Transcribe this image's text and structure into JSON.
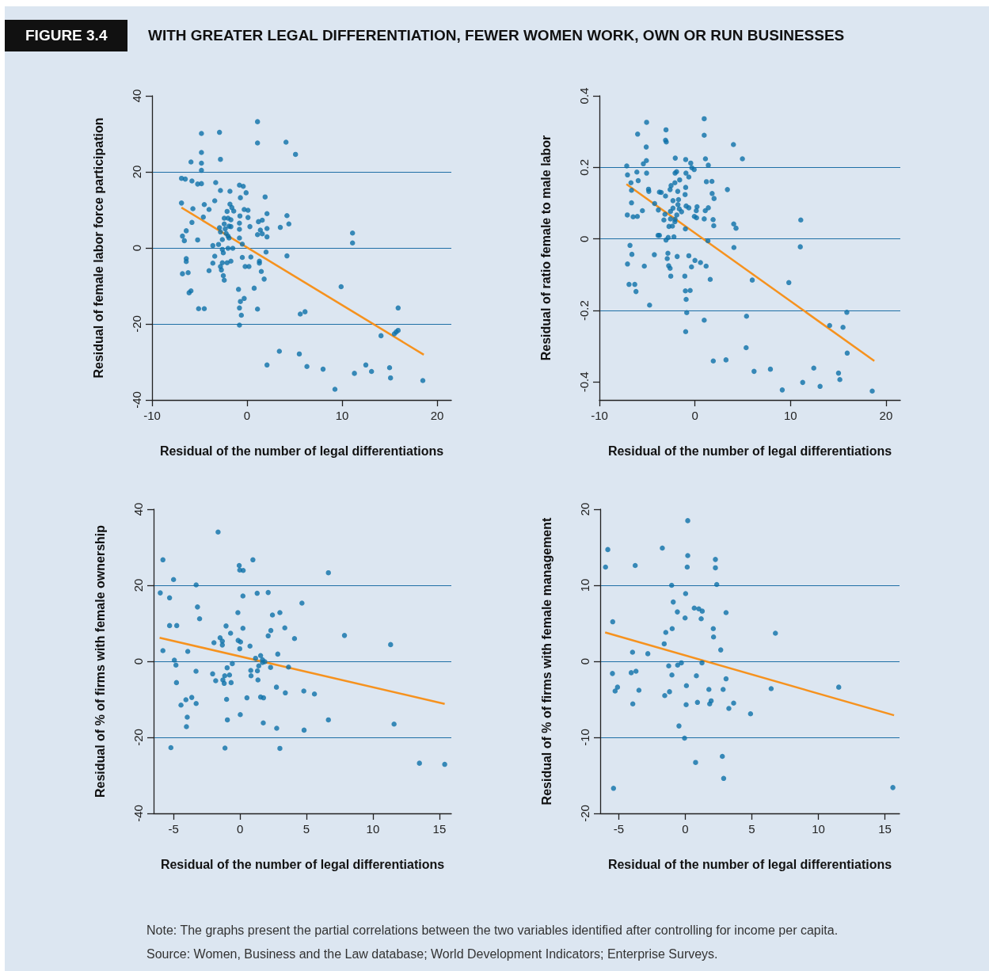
{
  "chart_data": [
    {
      "type": "scatter",
      "subtitle": "FIGURE 3.4",
      "title": "WITH GREATER LEGAL DIFFERENTIATION, FEWER WOMEN WORK, OWN OR RUN BUSINESSES",
      "xlabel": "Residual of the number of legal differentiations",
      "ylabel": "Residual of female labor force participation",
      "xlim": [
        -10,
        21.5
      ],
      "ylim": [
        -40,
        40
      ],
      "xticks": [
        -10,
        0,
        10,
        20
      ],
      "yticks": [
        -40,
        -20,
        0,
        20,
        40
      ],
      "grid": "y",
      "marker": "circle",
      "series": [
        {
          "color": "#0c70a9",
          "x": [
            1.1,
            -4.8,
            -2.9,
            1.1,
            4.1,
            5.1,
            -4.8,
            -5.9,
            -4.8,
            -2.8,
            -4.8,
            -6.9,
            -6.5,
            -5.8,
            -5.2,
            -4.8,
            -3.3,
            -0.8,
            -0.4,
            -2.8,
            -1.8,
            -0.1,
            -0.7,
            1.9,
            -3.4,
            -6.9,
            -4.5,
            -1.8,
            -4.0,
            -5.7,
            -1.6,
            -1.4,
            -2.1,
            -0.3,
            0.1,
            2.1,
            4.2,
            -0.75,
            -4.6,
            0.1,
            -2.4,
            -2.0,
            -1.7,
            -5.8,
            1.6,
            1.2,
            4.4,
            -2.4,
            -1.9,
            -1.7,
            -0.8,
            0.3,
            3.5,
            -2.9,
            -2.3,
            -0.8,
            2.1,
            1.4,
            -6.4,
            -2.8,
            -2.2,
            1.1,
            1.6,
            2.1,
            -6.8,
            -2.0,
            -1.9,
            -0.8,
            -6.6,
            -5.2,
            -2.6,
            -3.0,
            -3.6,
            -0.5,
            -2.0,
            -1.5,
            -2.6,
            -2.5,
            2.0,
            -3.4,
            -0.5,
            0.4,
            4.2,
            -6.4,
            -6.4,
            -2.6,
            -2.1,
            -1.7,
            1.3,
            1.3,
            -3.6,
            -2.8,
            -2.7,
            -0.2,
            0.2,
            -4.0,
            1.5,
            -6.8,
            -6.2,
            -2.5,
            1.8,
            -2.4,
            -0.9,
            0.75,
            9.9,
            -6.1,
            -5.9,
            -0.3,
            -0.7,
            -0.8,
            -0.6,
            -0.8,
            -5.1,
            -4.5,
            1.1,
            5.6,
            6.1,
            11.1,
            11.1,
            15.9,
            14.1,
            15.9,
            15.7,
            15.5,
            3.4,
            2.1,
            5.5,
            6.3,
            8.0,
            9.25,
            11.3,
            12.5,
            13.1,
            15.0,
            15.1,
            18.5
          ],
          "values": [
            33.2,
            30.1,
            30.4,
            27.6,
            27.8,
            24.6,
            25.1,
            22.6,
            22.3,
            23.3,
            20.4,
            18.3,
            18.1,
            17.6,
            16.8,
            16.9,
            17.2,
            16.5,
            16.2,
            15.1,
            14.9,
            14.5,
            13.2,
            13.4,
            12.4,
            11.8,
            11.4,
            11.5,
            10.1,
            10.3,
            10.6,
            9.7,
            9.6,
            10.1,
            9.9,
            9.0,
            8.5,
            8.4,
            8.1,
            8.0,
            7.8,
            7.8,
            7.4,
            6.7,
            7.3,
            6.9,
            6.3,
            6.3,
            5.7,
            5.6,
            6.5,
            5.6,
            5.4,
            5.3,
            5.0,
            4.9,
            5.1,
            4.7,
            4.5,
            4.2,
            3.8,
            3.5,
            3.7,
            2.9,
            3.1,
            3.1,
            2.6,
            2.6,
            1.9,
            2.1,
            2.2,
            0.9,
            0.6,
            1.0,
            -0.1,
            -0.1,
            -0.4,
            -1.3,
            -1.1,
            -2.2,
            -2.5,
            -2.4,
            -2.1,
            -2.8,
            -3.6,
            -3.9,
            -3.9,
            -3.5,
            -3.5,
            -4.0,
            -4.0,
            -4.9,
            -5.8,
            -4.9,
            -4.9,
            -6.0,
            -6.2,
            -6.8,
            -6.5,
            -7.3,
            -8.2,
            -8.5,
            -10.9,
            -10.6,
            -10.2,
            -11.8,
            -11.3,
            -13.3,
            -14.1,
            -15.8,
            -17.7,
            -20.3,
            -16.0,
            -16.0,
            -16.1,
            -17.4,
            -16.8,
            3.9,
            1.3,
            -15.8,
            -23.1,
            -21.7,
            -22.1,
            -22.6,
            -27.2,
            -30.8,
            -27.9,
            -31.2,
            -31.9,
            -37.2,
            -33.0,
            -30.8,
            -32.5,
            -31.5,
            -34.2,
            -34.9
          ]
        },
        {
          "type": "line",
          "color": "#f6921e",
          "marker": "none",
          "x": [
            -6.9,
            18.6
          ],
          "values": [
            10.6,
            -28.1
          ]
        }
      ]
    },
    {
      "type": "scatter",
      "xlabel": "Residual of the number of legal differentiations",
      "ylabel": "Residual of ratio female to male labor",
      "xlim": [
        -10,
        21.5
      ],
      "ylim": [
        -0.45,
        0.4
      ],
      "xticks": [
        -10,
        0,
        10,
        20
      ],
      "yticks": [
        -0.4,
        -0.2,
        0,
        0.2,
        0.4
      ],
      "grid": "y",
      "marker": "circle",
      "series": [
        {
          "color": "#0c70a9",
          "x": [
            0.97,
            0.97,
            -5.06,
            -3.03,
            -6.0,
            -3.08,
            -3.0,
            4.03,
            -5.1,
            -5.08,
            -5.4,
            4.97,
            -7.14,
            -7.06,
            -6.08,
            -5.06,
            -5.94,
            -6.7,
            -6.64,
            -4.86,
            -4.83,
            -6.64,
            -7.08,
            -6.47,
            -6.03,
            -5.5,
            -4.22,
            -3.83,
            -3.72,
            -3.53,
            -3.08,
            -2.06,
            -0.97,
            -0.44,
            -0.33,
            -0.08,
            1.1,
            1.4,
            -2.08,
            -1.92,
            -0.94,
            -0.64,
            -1.6,
            -2.1,
            -2.5,
            -2.6,
            -1.8,
            -0.97,
            -1.03,
            1.2,
            1.78,
            1.8,
            2.0,
            3.4,
            -2.3,
            -1.72,
            -1.78,
            -2.3,
            -1.64,
            -1.4,
            -0.92,
            -0.64,
            0.22,
            0.14,
            -0.06,
            0.17,
            1.08,
            1.4,
            0.97,
            1.9,
            1.97,
            -3.14,
            -2.56,
            -1.9,
            -2.56,
            -2.08,
            -3.25,
            -2.72,
            -2.36,
            -2.1,
            -1.0,
            -3.72,
            -3.86,
            -2.8,
            -2.2,
            -3.03,
            1.36,
            4.06,
            4.3,
            4.08,
            11.08,
            11.03,
            -6.8,
            -6.6,
            -7.06,
            -4.25,
            -2.83,
            -2.9,
            -1.86,
            -0.64,
            -5.3,
            -2.75,
            -2.6,
            -2.53,
            0,
            0.58,
            -0.36,
            1.17,
            -1.06,
            1.6,
            6.0,
            9.83,
            -6.9,
            -6.3,
            -6.17,
            -1.0,
            -0.5,
            -0.92,
            -4.75,
            -0.86,
            -0.97,
            0.97,
            5.4,
            5.36,
            1.92,
            3.25,
            6.19,
            7.9,
            9.14,
            11.28,
            12.44,
            13.1,
            14.1,
            15.5,
            15.9,
            15.94,
            15.03,
            15.17,
            18.56
          ],
          "values": [
            0.336,
            0.29,
            0.326,
            0.305,
            0.293,
            0.276,
            0.271,
            0.264,
            0.257,
            0.219,
            0.21,
            0.224,
            0.204,
            0.179,
            0.187,
            0.184,
            0.163,
            0.157,
            0.136,
            0.139,
            0.133,
            0.101,
            0.067,
            0.062,
            0.063,
            0.079,
            0.099,
            0.081,
            0.131,
            0.13,
            0.12,
            0.226,
            0.222,
            0.212,
            0.199,
            0.194,
            0.224,
            0.206,
            0.184,
            0.188,
            0.184,
            0.173,
            0.165,
            0.157,
            0.149,
            0.138,
            0.133,
            0.144,
            0.124,
            0.16,
            0.161,
            0.127,
            0.113,
            0.138,
            0.107,
            0.11,
            0.096,
            0.086,
            0.084,
            0.076,
            0.092,
            0.087,
            0.09,
            0.079,
            0.063,
            0.059,
            0.079,
            0.087,
            0.056,
            0.054,
            0.037,
            0.069,
            0.077,
            0.067,
            0.056,
            0.055,
            0.053,
            0.035,
            0.036,
            0.048,
            0.028,
            0.01,
            0.01,
            0.004,
            0.006,
            -0.003,
            -0.005,
            0.042,
            0.03,
            -0.024,
            0.053,
            -0.022,
            -0.018,
            -0.043,
            -0.07,
            -0.044,
            -0.04,
            -0.055,
            -0.049,
            -0.047,
            -0.076,
            -0.075,
            -0.082,
            -0.104,
            -0.06,
            -0.066,
            -0.078,
            -0.076,
            -0.104,
            -0.113,
            -0.115,
            -0.122,
            -0.127,
            -0.127,
            -0.147,
            -0.145,
            -0.144,
            -0.169,
            -0.185,
            -0.206,
            -0.259,
            -0.227,
            -0.216,
            -0.304,
            -0.341,
            -0.338,
            -0.37,
            -0.364,
            -0.422,
            -0.401,
            -0.361,
            -0.412,
            -0.242,
            -0.247,
            -0.205,
            -0.319,
            -0.375,
            -0.393,
            -0.425
          ]
        },
        {
          "type": "line",
          "color": "#f6921e",
          "marker": "none",
          "x": [
            -7.17,
            18.78
          ],
          "values": [
            0.153,
            -0.341
          ]
        }
      ]
    },
    {
      "type": "scatter",
      "xlabel": "Residual of the number of legal differentiations",
      "ylabel": "Residual of % of firms with female ownership",
      "xlim": [
        -6.5,
        15.9
      ],
      "ylim": [
        -40,
        40
      ],
      "xticks": [
        -5,
        0,
        5,
        10,
        15
      ],
      "yticks": [
        -40,
        -20,
        0,
        20,
        40
      ],
      "grid": "y",
      "marker": "circle",
      "series": [
        {
          "color": "#0c70a9",
          "x": [
            -1.65,
            -5.8,
            0.97,
            -0.06,
            -0.02,
            0.24,
            6.65,
            -5.0,
            -3.3,
            -6.0,
            -5.3,
            1.29,
            2.12,
            0.22,
            4.66,
            -3.2,
            -3.04,
            -0.16,
            2.44,
            3.0,
            -5.3,
            -4.76,
            -1.05,
            0.22,
            3.37,
            2.32,
            -0.71,
            2.12,
            4.1,
            7.86,
            11.33,
            -1.5,
            -1.33,
            -1.33,
            -1.96,
            -0.14,
            0.04,
            -0.02,
            0.75,
            -5.8,
            -3.93,
            2.84,
            1.55,
            1.17,
            1.69,
            1.87,
            1.69,
            -4.94,
            -4.82,
            -0.58,
            -0.97,
            1.41,
            2.3,
            3.65,
            0.81,
            1.31,
            -3.31,
            -2.06,
            -1.15,
            -0.79,
            0.83,
            -1.83,
            -1.29,
            -1.19,
            -0.67,
            1.35,
            -4.78,
            2.74,
            3.41,
            4.8,
            5.6,
            0.52,
            1.55,
            1.77,
            -3.63,
            -4.07,
            -3.3,
            -4.44,
            -1.01,
            0.02,
            -3.97,
            -4.03,
            -0.95,
            1.75,
            2.76,
            4.82,
            6.65,
            11.59,
            -5.2,
            -1.13,
            3.0,
            13.5,
            15.4
          ],
          "values": [
            34.0,
            26.7,
            26.7,
            25.2,
            24.0,
            23.9,
            23.3,
            21.5,
            20.1,
            18.0,
            16.7,
            17.9,
            18.1,
            17.2,
            15.3,
            14.3,
            11.2,
            12.8,
            12.2,
            12.8,
            9.4,
            9.4,
            9.3,
            8.7,
            8.8,
            8.1,
            7.4,
            6.7,
            6.0,
            6.8,
            4.4,
            6.2,
            5.3,
            4.3,
            4.9,
            5.5,
            5.1,
            3.3,
            4.0,
            2.8,
            2.6,
            1.9,
            1.5,
            0.8,
            0.4,
            -0.1,
            -0.3,
            0.3,
            -1.0,
            -0.6,
            -1.7,
            -1.2,
            -1.6,
            -1.5,
            -2.4,
            -2.5,
            -2.6,
            -3.3,
            -3.8,
            -3.6,
            -3.8,
            -5.1,
            -4.9,
            -5.8,
            -5.6,
            -4.9,
            -5.6,
            -6.8,
            -8.3,
            -7.8,
            -8.6,
            -9.6,
            -9.4,
            -9.6,
            -9.5,
            -10.1,
            -11.1,
            -11.5,
            -10.0,
            -14.0,
            -14.7,
            -17.2,
            -15.4,
            -16.2,
            -17.6,
            -18.1,
            -15.4,
            -16.5,
            -22.7,
            -22.8,
            -22.9,
            -26.8,
            -27.1
          ]
        },
        {
          "type": "line",
          "color": "#f6921e",
          "marker": "none",
          "x": [
            -6.05,
            15.4
          ],
          "values": [
            6.2,
            -11.2
          ]
        }
      ]
    },
    {
      "type": "scatter",
      "xlabel": "Residual of the number of legal differentiations",
      "ylabel": "Residual of % of firms with female management",
      "xlim": [
        -6.4,
        16.1
      ],
      "ylim": [
        -20,
        20
      ],
      "xticks": [
        -5,
        0,
        5,
        10,
        15
      ],
      "yticks": [
        -20,
        -10,
        0,
        10,
        20
      ],
      "grid": "y",
      "marker": "circle",
      "annotations": [
        "Note: The graphs present the partial correlations between the two variables identified after controlling for income per capita.",
        "Source: Women, Business and the Law database; World Development Indicators; Enterprise Surveys."
      ],
      "series": [
        {
          "color": "#0c70a9",
          "x": [
            0.18,
            -5.83,
            -1.73,
            0.18,
            -6.0,
            -3.77,
            0.14,
            2.26,
            2.26,
            2.36,
            -1.03,
            0.02,
            -0.91,
            0.67,
            1.01,
            1.27,
            -0.6,
            3.06,
            -0.02,
            1.19,
            -5.46,
            2.1,
            -0.99,
            -1.47,
            2.12,
            6.77,
            -1.59,
            2.66,
            -3.97,
            -2.82,
            1.25,
            -0.3,
            -0.58,
            -1.25,
            -5.48,
            -4.07,
            -3.71,
            -1.01,
            0.83,
            3.06,
            -5.1,
            -5.28,
            -3.49,
            0.08,
            1.77,
            2.84,
            6.45,
            11.53,
            -1.55,
            -1.19,
            -3.95,
            0.06,
            0.91,
            1.83,
            1.94,
            3.27,
            3.63,
            4.9,
            -0.48,
            -0.06,
            2.78,
            0.77,
            2.88,
            -5.4,
            15.6
          ],
          "values": [
            18.5,
            14.7,
            14.9,
            13.9,
            12.4,
            12.6,
            12.4,
            13.4,
            12.3,
            10.1,
            10.0,
            8.9,
            7.8,
            7.0,
            6.9,
            6.6,
            6.5,
            6.4,
            5.7,
            5.6,
            5.2,
            4.3,
            4.3,
            3.8,
            3.2,
            3.7,
            2.3,
            1.5,
            1.2,
            1.0,
            -0.2,
            -0.2,
            -0.5,
            -0.6,
            -1.6,
            -1.5,
            -1.3,
            -1.8,
            -1.9,
            -2.3,
            -3.4,
            -3.9,
            -3.8,
            -3.2,
            -3.7,
            -3.7,
            -3.6,
            -3.4,
            -4.5,
            -4.0,
            -5.6,
            -5.7,
            -5.4,
            -5.6,
            -5.2,
            -6.2,
            -5.5,
            -6.9,
            -8.5,
            -10.1,
            -12.5,
            -13.3,
            -15.4,
            -16.7,
            -16.6
          ]
        },
        {
          "type": "line",
          "color": "#f6921e",
          "marker": "none",
          "x": [
            -6.03,
            15.69
          ],
          "values": [
            3.8,
            -7.1
          ]
        }
      ]
    }
  ]
}
